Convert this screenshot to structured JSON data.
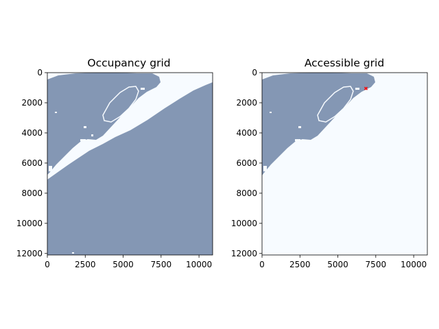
{
  "figure": {
    "background": "#ffffff",
    "occupied_color": "#8497b4",
    "free_color": "#f7fbff",
    "marker_color": "#ff0000"
  },
  "chart_data": [
    {
      "type": "heatmap",
      "title": "Occupancy grid",
      "xlabel": "",
      "ylabel": "",
      "xlim": [
        0,
        10900
      ],
      "ylim": [
        12100,
        0
      ],
      "xticks": [
        0,
        2500,
        5000,
        7500,
        10000
      ],
      "yticks": [
        0,
        2000,
        4000,
        6000,
        8000,
        10000,
        12000
      ],
      "xtick_labels": [
        "0",
        "2500",
        "5000",
        "7500",
        "10000"
      ],
      "ytick_labels": [
        "0",
        "2000",
        "4000",
        "6000",
        "8000",
        "10000",
        "12000"
      ],
      "grid": false,
      "legend": "none"
    },
    {
      "type": "heatmap",
      "title": "Accessible grid",
      "xlabel": "",
      "ylabel": "",
      "xlim": [
        0,
        10900
      ],
      "ylim": [
        12100,
        0
      ],
      "xticks": [
        0,
        2500,
        5000,
        7500,
        10000
      ],
      "yticks": [
        0,
        2000,
        4000,
        6000,
        8000,
        10000,
        12000
      ],
      "xtick_labels": [
        "0",
        "2500",
        "5000",
        "7500",
        "10000"
      ],
      "ytick_labels": [
        "0",
        "2000",
        "4000",
        "6000",
        "8000",
        "10000",
        "12000"
      ],
      "grid": false,
      "legend": "none",
      "marker": {
        "x": 6850,
        "y": 1050
      }
    }
  ]
}
